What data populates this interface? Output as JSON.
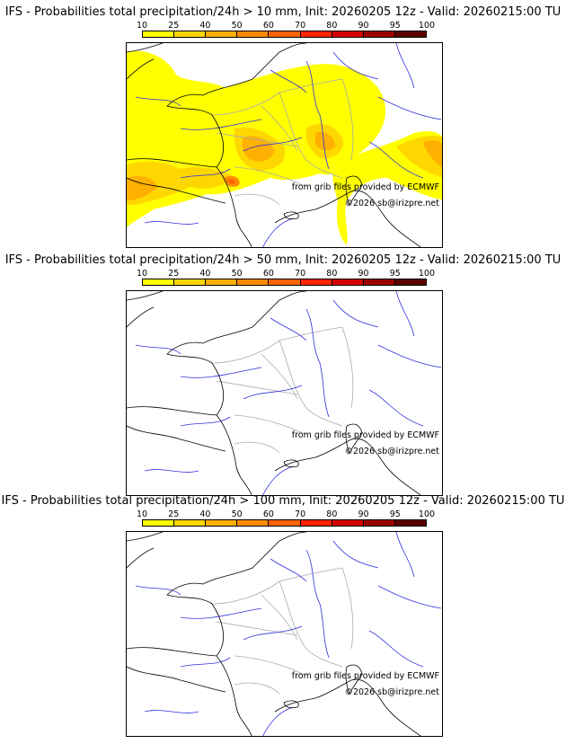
{
  "colorbar": {
    "ticks": [
      "10",
      "25",
      "40",
      "50",
      "60",
      "70",
      "80",
      "90",
      "95",
      "100"
    ],
    "colors": [
      "#ffff00",
      "#ffd700",
      "#ffb000",
      "#ff8c00",
      "#ff6400",
      "#ff2400",
      "#d40000",
      "#9a0000",
      "#5c0000"
    ]
  },
  "panels": [
    {
      "title": "IFS - Probabilities total precipitation/24h > 10 mm, Init: 20260205 12z - Valid: 20260215:00 TU",
      "has_precip": true
    },
    {
      "title": "IFS - Probabilities total precipitation/24h > 50 mm, Init: 20260205 12z - Valid: 20260215:00 TU",
      "has_precip": false
    },
    {
      "title": "IFS - Probabilities total precipitation/24h > 100 mm, Init: 20260205 12z - Valid: 20260215:00 TU",
      "has_precip": false
    }
  ],
  "credits": {
    "source": "from grib files provided by ECMWF",
    "copyright": "©2026 sb@irizpre.net"
  }
}
